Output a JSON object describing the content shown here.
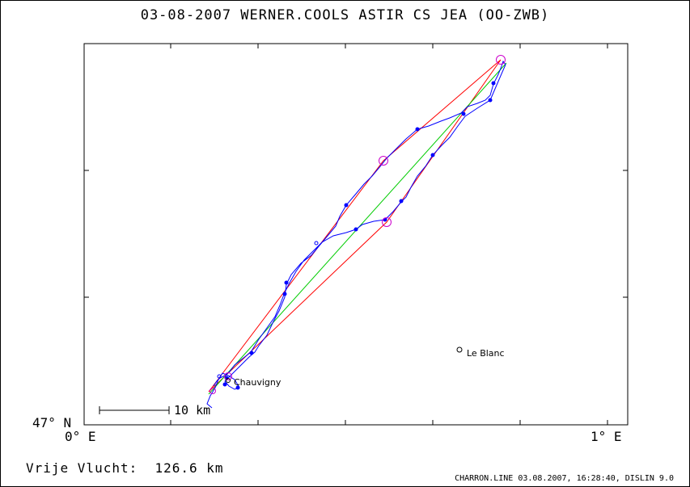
{
  "header": {
    "title": "03-08-2007   WERNER.COOLS   ASTIR CS JEA (OO-ZWB)"
  },
  "axes": {
    "lat_label": "47° N",
    "lon_left_label": "0° E",
    "lon_right_label": "1° E"
  },
  "scale": {
    "label": "10 km"
  },
  "places": [
    {
      "name": "Chauvigny"
    },
    {
      "name": "Le Blanc"
    }
  ],
  "summary": {
    "label": "Vrije Vlucht:",
    "distance": "126.6 km"
  },
  "footer": {
    "text": "CHARRON.LINE 03.08.2007, 16:28:40, DISLIN 9.0"
  },
  "colors": {
    "track": "#0000ff",
    "task_line": "#ff0000",
    "straight_line": "#00cc00",
    "turnpoint": "#cc00cc",
    "frame": "#000000"
  }
}
